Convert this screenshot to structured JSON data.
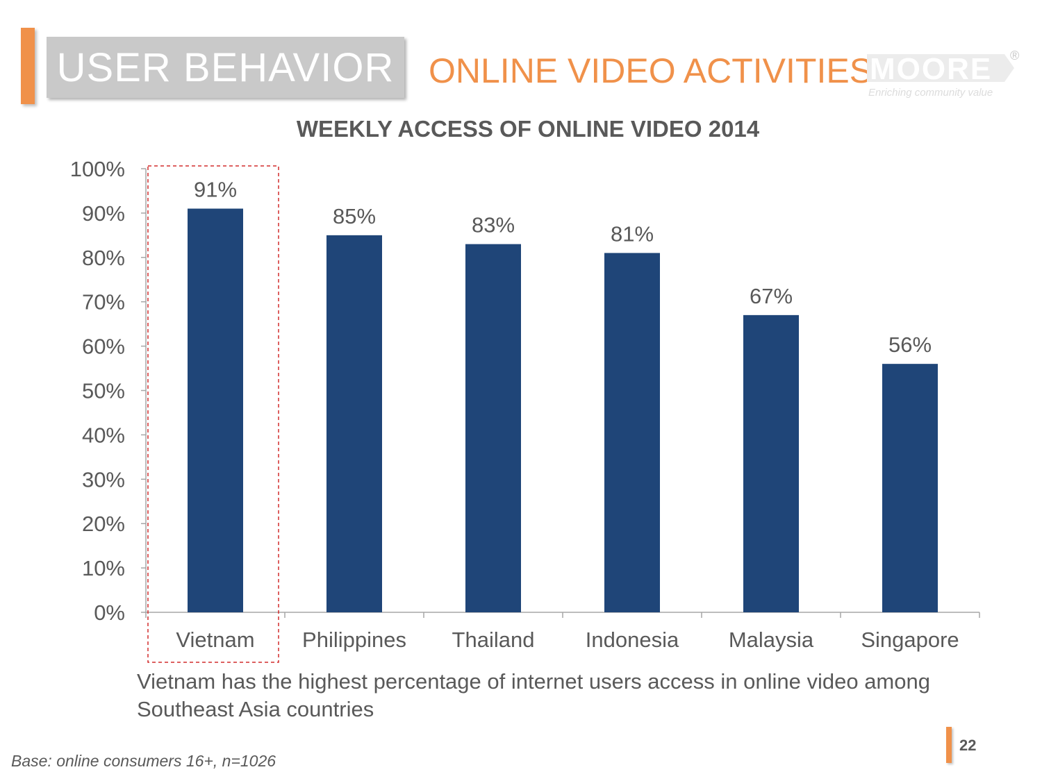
{
  "header": {
    "section": "USER BEHAVIOR",
    "heading": "ONLINE VIDEO ACTIVITIES"
  },
  "logo": {
    "name": "MOORE",
    "tagline": "Enriching community value",
    "mark": "®"
  },
  "chart_data": {
    "type": "bar",
    "title": "WEEKLY ACCESS OF ONLINE VIDEO 2014",
    "xlabel": "",
    "ylabel": "",
    "categories": [
      "Vietnam",
      "Philippines",
      "Thailand",
      "Indonesia",
      "Malaysia",
      "Singapore"
    ],
    "values": [
      91,
      85,
      83,
      81,
      67,
      56
    ],
    "data_labels": [
      "91%",
      "85%",
      "83%",
      "81%",
      "67%",
      "56%"
    ],
    "ylim": [
      0,
      100
    ],
    "yticks": [
      0,
      10,
      20,
      30,
      40,
      50,
      60,
      70,
      80,
      90,
      100
    ],
    "ytick_labels": [
      "0%",
      "10%",
      "20%",
      "30%",
      "40%",
      "50%",
      "60%",
      "70%",
      "80%",
      "90%",
      "100%"
    ],
    "bar_color": "#1f4578",
    "highlight_category": "Vietnam",
    "highlight_color": "#d22b2b",
    "grid": false,
    "legend": "none"
  },
  "caption": "Vietnam has the highest percentage of internet users access in online video among Southeast Asia countries",
  "footnote": "Base: online consumers 16+, n=1026",
  "page_number": "22"
}
